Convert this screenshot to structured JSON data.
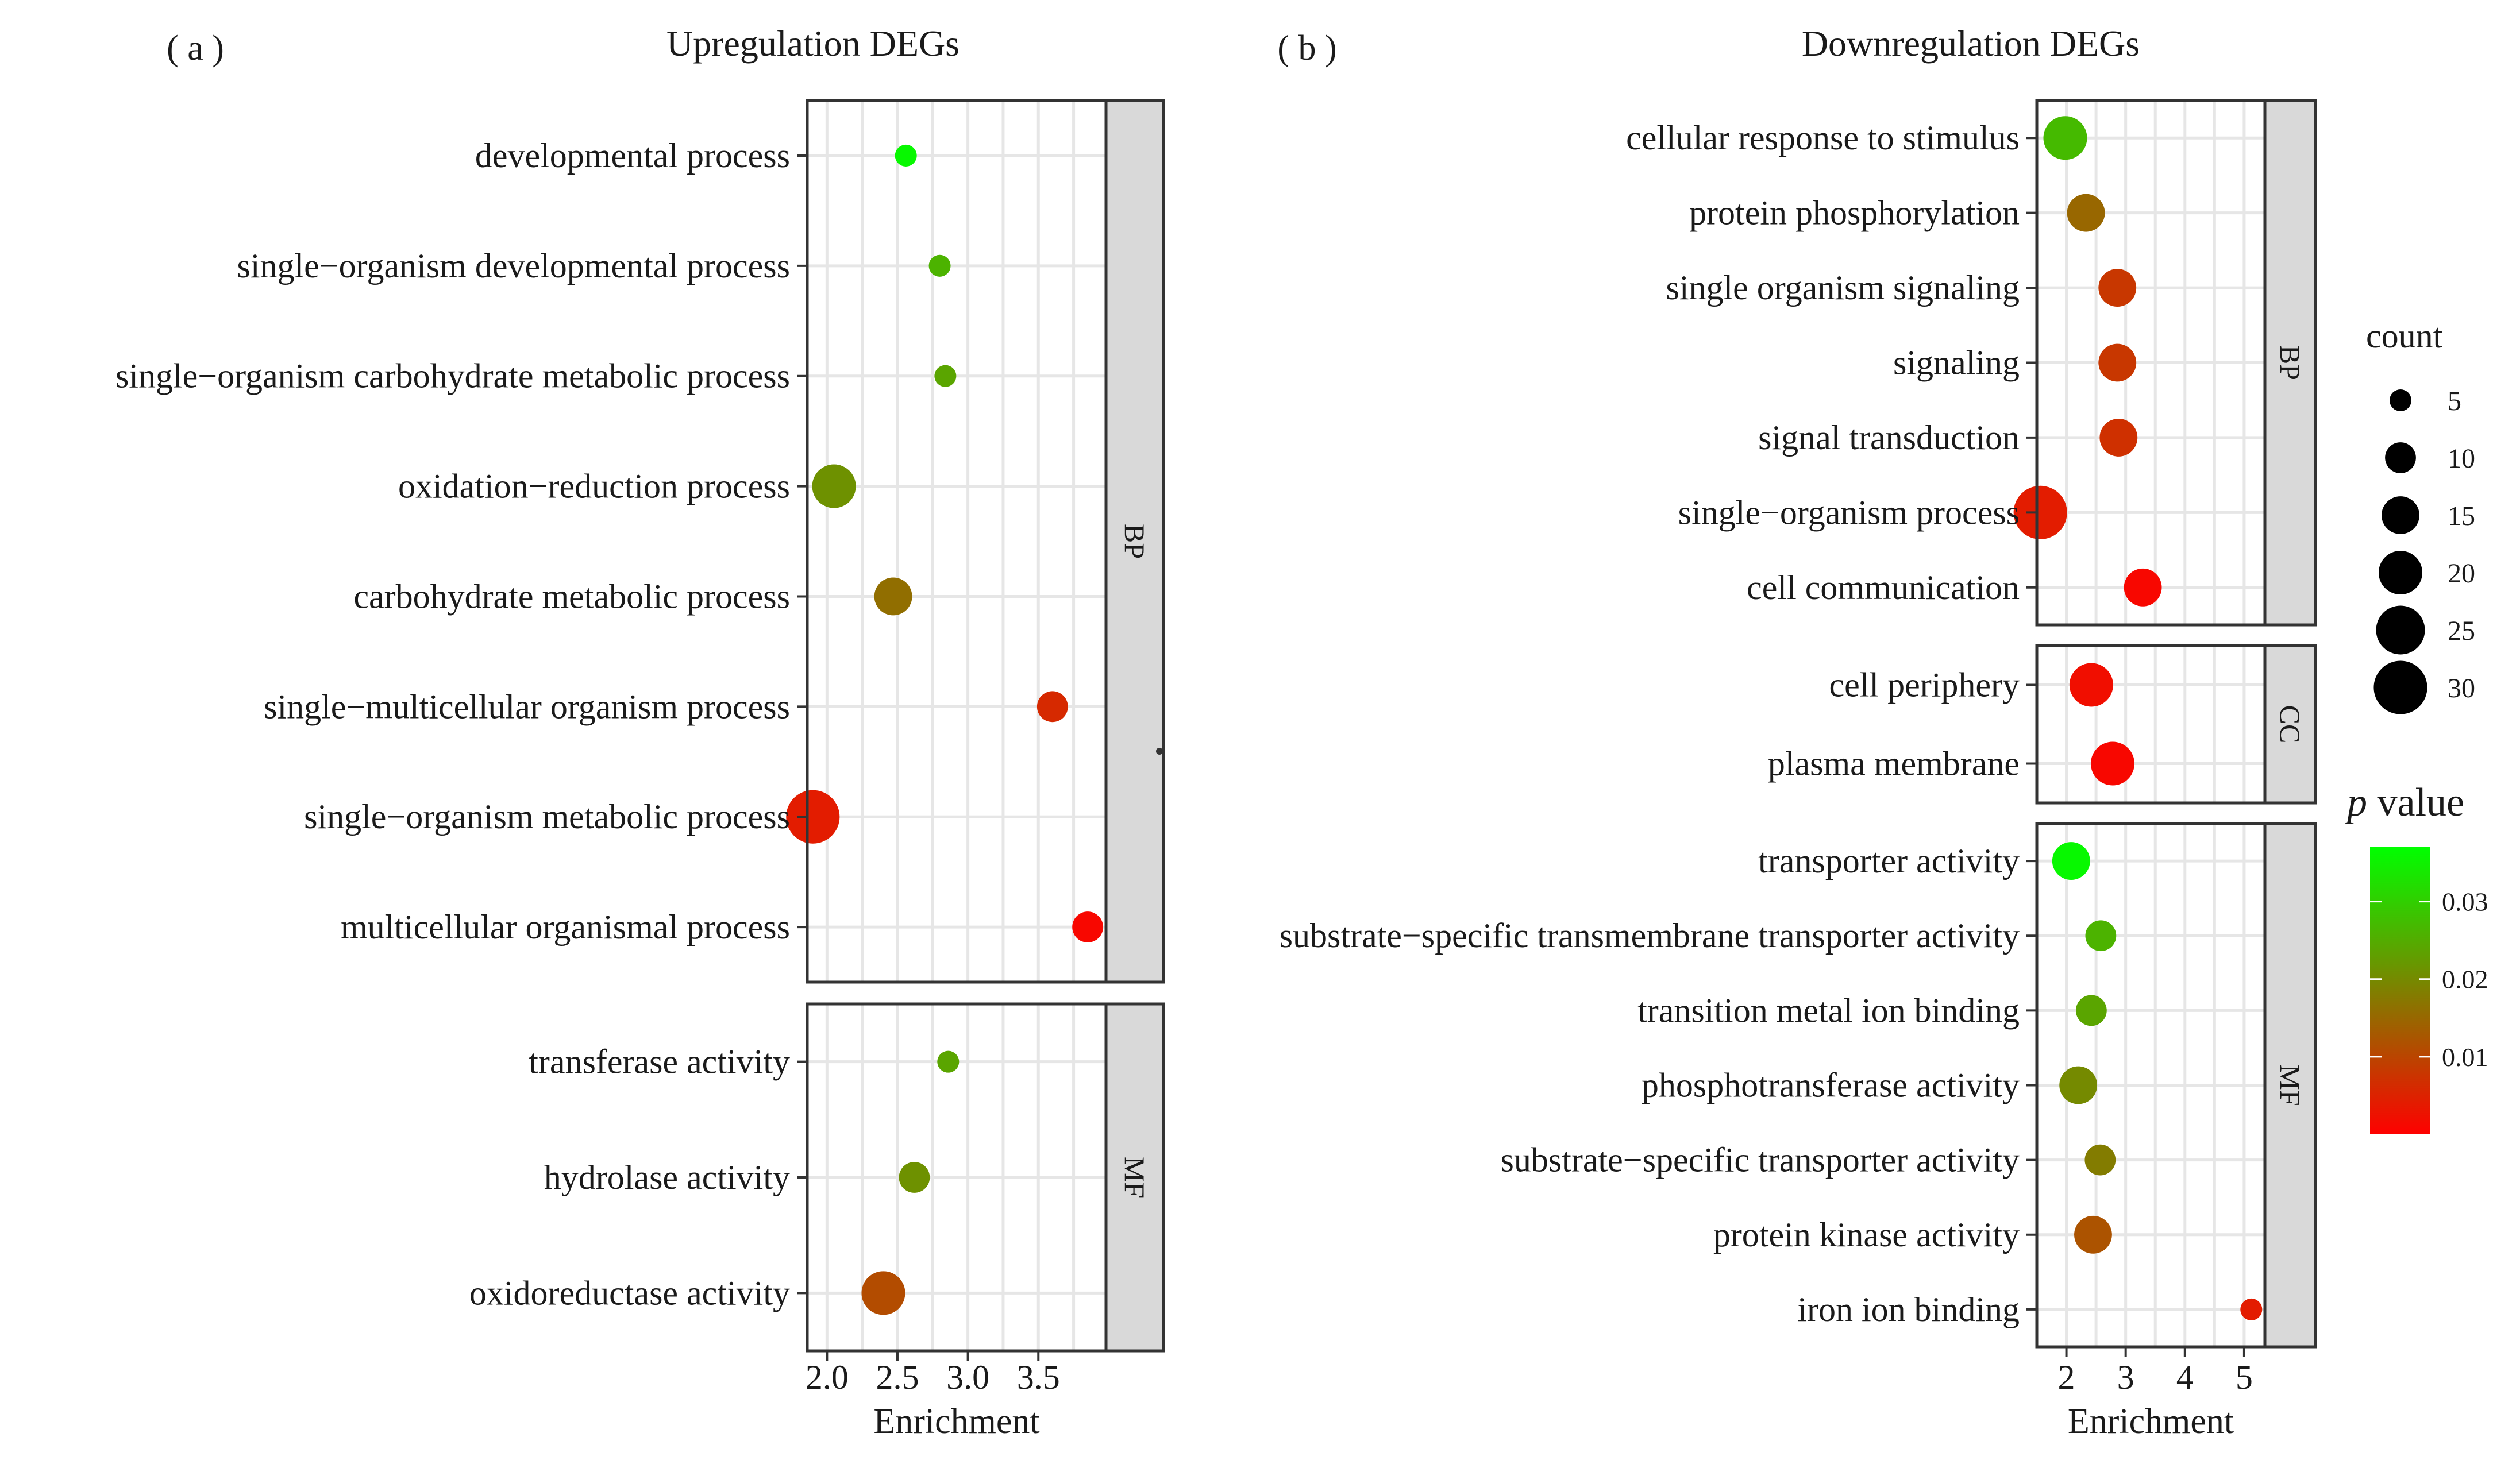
{
  "figure_labels": {
    "a": "( a )",
    "b": "( b )"
  },
  "chart_data": [
    {
      "type": "scatter",
      "title": "Upregulation DEGs",
      "xlabel": "Enrichment",
      "xlim": [
        1.86,
        3.98
      ],
      "xticks": [
        2.0,
        2.5,
        3.0,
        3.5
      ],
      "xtick_labels": [
        "2.0",
        "2.5",
        "3.0",
        "3.5"
      ],
      "facets": [
        {
          "label": "BP",
          "terms": [
            {
              "term": "developmental process",
              "enrichment": 2.56,
              "count": 5,
              "p_value": 0.036
            },
            {
              "term": "single−organism developmental process",
              "enrichment": 2.8,
              "count": 5,
              "p_value": 0.026
            },
            {
              "term": "single−organism carbohydrate metabolic process",
              "enrichment": 2.84,
              "count": 5,
              "p_value": 0.024
            },
            {
              "term": "oxidation−reduction process",
              "enrichment": 2.05,
              "count": 20,
              "p_value": 0.021
            },
            {
              "term": "carbohydrate metabolic process",
              "enrichment": 2.47,
              "count": 15,
              "p_value": 0.016
            },
            {
              "term": "single−multicellular organism process",
              "enrichment": 3.6,
              "count": 10,
              "p_value": 0.006
            },
            {
              "term": "single−organism metabolic process",
              "enrichment": 1.9,
              "count": 30,
              "p_value": 0.004
            },
            {
              "term": "multicellular organismal process",
              "enrichment": 3.85,
              "count": 10,
              "p_value": 0.001
            }
          ]
        },
        {
          "label": "MF",
          "terms": [
            {
              "term": "transferase activity",
              "enrichment": 2.86,
              "count": 5,
              "p_value": 0.024
            },
            {
              "term": "hydrolase activity",
              "enrichment": 2.62,
              "count": 10,
              "p_value": 0.021
            },
            {
              "term": "oxidoreductase activity",
              "enrichment": 2.4,
              "count": 20,
              "p_value": 0.011
            }
          ]
        }
      ]
    },
    {
      "type": "scatter",
      "title": "Downregulation DEGs",
      "xlabel": "Enrichment",
      "xlim": [
        1.5,
        5.35
      ],
      "xticks": [
        2,
        3,
        4,
        5
      ],
      "xtick_labels": [
        "2",
        "3",
        "4",
        "5"
      ],
      "facets": [
        {
          "label": "BP",
          "terms": [
            {
              "term": "cellular response to stimulus",
              "enrichment": 1.98,
              "count": 20,
              "p_value": 0.027
            },
            {
              "term": "protein phosphorylation",
              "enrichment": 2.33,
              "count": 15,
              "p_value": 0.015
            },
            {
              "term": "single organism signaling",
              "enrichment": 2.86,
              "count": 15,
              "p_value": 0.008
            },
            {
              "term": "signaling",
              "enrichment": 2.86,
              "count": 15,
              "p_value": 0.008
            },
            {
              "term": "signal transduction",
              "enrichment": 2.88,
              "count": 15,
              "p_value": 0.007
            },
            {
              "term": "single−organism process",
              "enrichment": 1.56,
              "count": 30,
              "p_value": 0.004
            },
            {
              "term": "cell communication",
              "enrichment": 3.29,
              "count": 15,
              "p_value": 0.001
            }
          ]
        },
        {
          "label": "CC",
          "terms": [
            {
              "term": "cell periphery",
              "enrichment": 2.42,
              "count": 20,
              "p_value": 0.002
            },
            {
              "term": "plasma membrane",
              "enrichment": 2.78,
              "count": 20,
              "p_value": 0.001
            }
          ]
        },
        {
          "label": "MF",
          "terms": [
            {
              "term": "transporter activity",
              "enrichment": 2.08,
              "count": 15,
              "p_value": 0.036
            },
            {
              "term": "substrate−specific transmembrane transporter activity",
              "enrichment": 2.58,
              "count": 10,
              "p_value": 0.026
            },
            {
              "term": "transition metal ion binding",
              "enrichment": 2.42,
              "count": 10,
              "p_value": 0.024
            },
            {
              "term": "phosphotransferase activity",
              "enrichment": 2.2,
              "count": 15,
              "p_value": 0.02
            },
            {
              "term": "substrate−specific transporter activity",
              "enrichment": 2.57,
              "count": 10,
              "p_value": 0.018
            },
            {
              "term": "protein kinase activity",
              "enrichment": 2.45,
              "count": 15,
              "p_value": 0.012
            },
            {
              "term": "iron ion binding",
              "enrichment": 5.12,
              "count": 5,
              "p_value": 0.004
            }
          ]
        }
      ]
    }
  ],
  "legend": {
    "size_title": "count",
    "size_values": [
      5,
      10,
      15,
      20,
      25,
      30
    ],
    "size_labels": [
      "5",
      "10",
      "15",
      "20",
      "25",
      "30"
    ],
    "color_title_italic": "p",
    "color_title_rest": " value",
    "color_ticks": [
      0.03,
      0.02,
      0.01
    ],
    "color_tick_labels": [
      "0.03",
      "0.02",
      "0.01"
    ],
    "color_range": [
      0.0,
      0.037
    ],
    "color_low": "#ff0000",
    "color_high": "#00ff00"
  }
}
